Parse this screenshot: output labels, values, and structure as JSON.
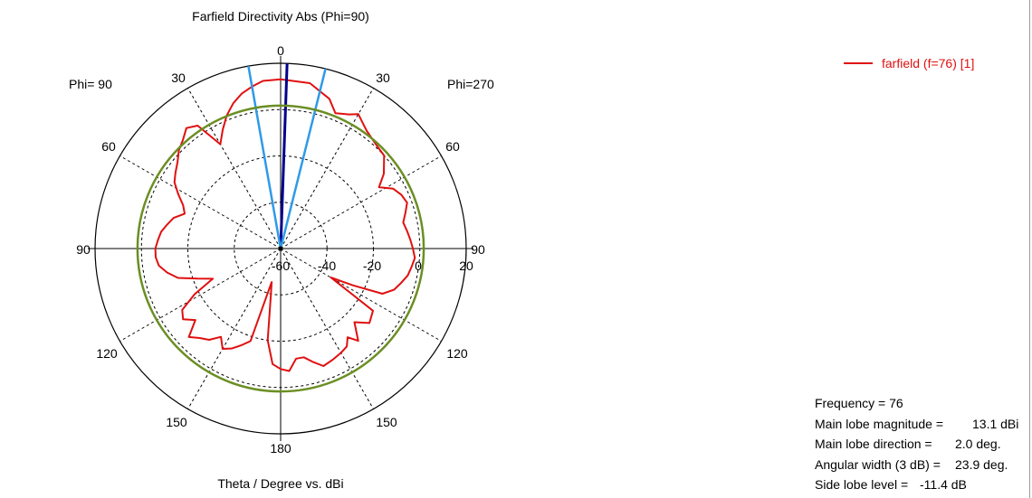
{
  "chart_data": {
    "type": "polar-line",
    "title": "Farfield Directivity Abs (Phi=90)",
    "xlabel": "Theta / Degree vs. dBi",
    "side_labels": {
      "left": "Phi= 90",
      "right": "Phi=270"
    },
    "angle_ticks": [
      "0",
      "30",
      "60",
      "90",
      "120",
      "150",
      "180",
      "150",
      "120",
      "90",
      "60",
      "30"
    ],
    "radial_ticks": [
      "-60",
      "-40",
      "-20",
      "0",
      "20"
    ],
    "radial_range": [
      -60,
      20
    ],
    "series": [
      {
        "name": "farfield (f=76) [1]",
        "color": "#e01010",
        "theta": [
          0,
          10,
          18,
          22,
          27,
          30,
          36,
          42,
          48,
          54,
          58,
          62,
          66,
          70,
          74,
          78,
          82,
          86,
          90,
          94,
          98,
          102,
          106,
          110,
          114,
          117,
          120,
          124,
          130,
          135,
          140,
          143,
          146,
          150,
          155,
          160,
          164,
          168,
          172,
          176,
          180,
          184,
          188,
          192,
          195,
          198,
          202,
          206,
          210,
          214,
          218,
          222,
          226,
          230,
          234,
          238,
          242,
          246,
          250,
          254,
          258,
          262,
          266,
          270,
          274,
          278,
          282,
          286,
          290,
          294,
          298,
          302,
          306,
          310,
          314,
          318,
          322,
          326,
          330,
          334,
          338,
          342,
          346,
          350,
          354,
          360
        ],
        "values": [
          13.1,
          12.5,
          8,
          3,
          5,
          7,
          3,
          1,
          0,
          -5,
          -10,
          -5,
          -3,
          -2,
          -4,
          -6,
          -5,
          -4,
          -3,
          -2,
          -3,
          -4,
          -6,
          -8,
          -12,
          -25,
          -35,
          -12,
          -10,
          -15,
          -8,
          -12,
          -9,
          -8,
          -7,
          -6,
          -9,
          -12,
          -12,
          -7,
          -8,
          -10,
          -20,
          -40,
          -45,
          -18,
          -15,
          -12,
          -10,
          -14,
          -10,
          -8,
          -5,
          -12,
          -8,
          -10,
          -18,
          -28,
          -22,
          -14,
          -10,
          -7,
          -6,
          -6,
          -7,
          -8,
          -10,
          -12,
          -16,
          -14,
          -10,
          -6,
          -4,
          -2,
          1,
          3,
          6,
          4,
          -8,
          -3,
          2,
          6,
          9,
          11,
          12.8,
          13.1
        ]
      },
      {
        "name": "Main lobe",
        "color": "#00008b",
        "theta": [
          2
        ],
        "values": [
          20
        ]
      },
      {
        "name": "3 dB beamwidth",
        "color": "#2f9ae8",
        "theta": [
          -10,
          14
        ],
        "values": [
          20,
          20
        ]
      },
      {
        "name": "Side lobe level",
        "color": "#6b8e23",
        "theta": [
          0
        ],
        "values": [
          1.7
        ]
      }
    ],
    "legend": {
      "label": "farfield (f=76) [1]",
      "color": "#e01010",
      "position": "top-right"
    },
    "info": [
      {
        "label": "Frequency = 76",
        "value": ""
      },
      {
        "label": "Main lobe magnitude =",
        "value": "13.1 dBi"
      },
      {
        "label": "Main lobe direction =",
        "value": "2.0 deg."
      },
      {
        "label": "Angular width (3 dB) =",
        "value": "23.9 deg."
      },
      {
        "label": "Side lobe level =",
        "value": "-11.4 dB"
      }
    ]
  }
}
